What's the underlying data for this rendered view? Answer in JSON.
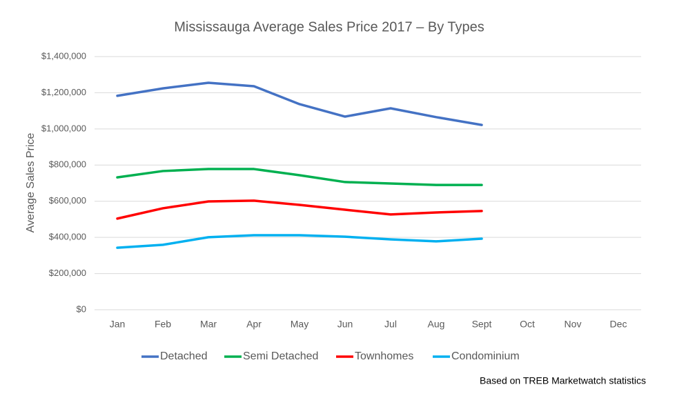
{
  "chart_data": {
    "type": "line",
    "title": "Mississauga Average Sales Price 2017 – By Types",
    "y_label": "Average Sales Price",
    "source": "Based on TREB Marketwatch statistics",
    "categories": [
      "Jan",
      "Feb",
      "Mar",
      "Apr",
      "May",
      "Jun",
      "Jul",
      "Aug",
      "Sept",
      "Oct",
      "Nov",
      "Dec"
    ],
    "series": [
      {
        "name": "Detached",
        "color": "#4472c4",
        "values": [
          1183000,
          1224000,
          1255000,
          1236000,
          1137000,
          1068000,
          1114000,
          1065000,
          1022000,
          null,
          null,
          null
        ]
      },
      {
        "name": "Semi Detached",
        "color": "#00b050",
        "values": [
          732000,
          767000,
          778000,
          778000,
          744000,
          706000,
          698000,
          690000,
          690000,
          null,
          null,
          null
        ]
      },
      {
        "name": "Townhomes",
        "color": "#ff0000",
        "values": [
          504000,
          561000,
          599000,
          603000,
          580000,
          553000,
          527000,
          538000,
          546000,
          null,
          null,
          null
        ]
      },
      {
        "name": "Condominium",
        "color": "#00b0f0",
        "values": [
          343000,
          359000,
          401000,
          412000,
          412000,
          404000,
          389000,
          378000,
          393000,
          null,
          null,
          null
        ]
      }
    ],
    "ylim": [
      0,
      1400000
    ],
    "yticks": [
      {
        "value": 0,
        "label": "$0"
      },
      {
        "value": 200000,
        "label": "$200,000"
      },
      {
        "value": 400000,
        "label": "$400,000"
      },
      {
        "value": 600000,
        "label": "$600,000"
      },
      {
        "value": 800000,
        "label": "$800,000"
      },
      {
        "value": 1000000,
        "label": "$1,000,000"
      },
      {
        "value": 1200000,
        "label": "$1,200,000"
      },
      {
        "value": 1400000,
        "label": "$1,400,000"
      }
    ],
    "grid": true,
    "legend": "bottom"
  }
}
